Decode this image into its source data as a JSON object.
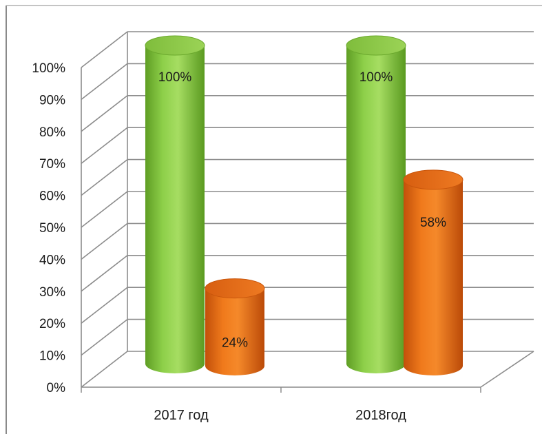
{
  "chart_data": {
    "type": "bar",
    "style": "3d-cylinder",
    "categories": [
      "2017 год",
      "2018год"
    ],
    "series": [
      {
        "values": [
          100,
          100
        ],
        "labels": [
          "100%",
          "100%"
        ],
        "color": "#7cc53a"
      },
      {
        "values": [
          24,
          58
        ],
        "labels": [
          "24%",
          "58%"
        ],
        "color": "#e8650c"
      }
    ],
    "yticks": [
      "0%",
      "10%",
      "20%",
      "30%",
      "40%",
      "50%",
      "60%",
      "70%",
      "80%",
      "90%",
      "100%"
    ],
    "ylim": [
      0,
      100
    ],
    "grid": true,
    "legend": "none"
  }
}
